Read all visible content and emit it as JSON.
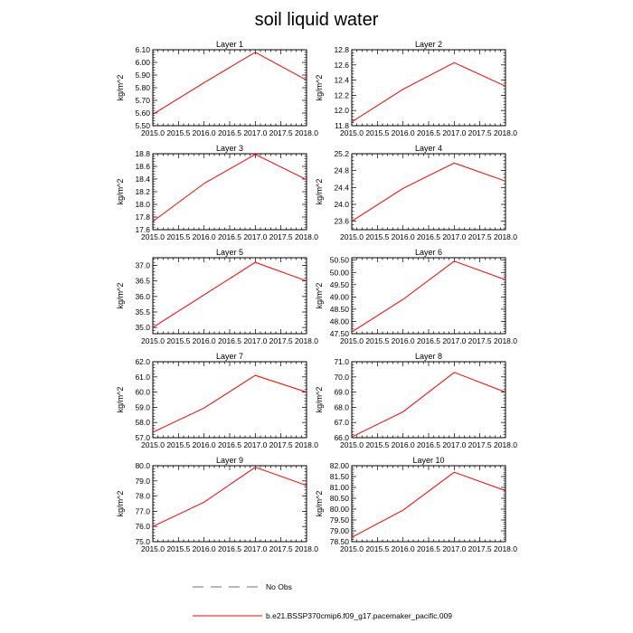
{
  "title": "soil liquid water",
  "colors": {
    "data_line": "#ff0000",
    "axis": "#000000",
    "legend_obs": "#6a6aa8"
  },
  "legend": {
    "obs_label": "No Obs",
    "model_label": "b.e21.BSSP370cmip6.f09_g17.pacemaker_pacific.009"
  },
  "chart_data": [
    {
      "type": "line",
      "title": "Layer 1",
      "xlabel": "",
      "ylabel": "kg/m^2",
      "x": [
        2015,
        2016,
        2017,
        2018
      ],
      "y": [
        5.59,
        5.84,
        6.08,
        5.86
      ],
      "xlim": [
        2015,
        2018
      ],
      "ylim": [
        5.5,
        6.1
      ],
      "xticks": [
        "2015.0",
        "2015.5",
        "2016.0",
        "2016.5",
        "2017.0",
        "2017.5",
        "2018.0"
      ],
      "yticks": [
        "5.50",
        "5.60",
        "5.70",
        "5.80",
        "5.90",
        "6.00",
        "6.10"
      ]
    },
    {
      "type": "line",
      "title": "Layer 2",
      "xlabel": "",
      "ylabel": "kg/m^2",
      "x": [
        2015,
        2016,
        2017,
        2018
      ],
      "y": [
        11.85,
        12.28,
        12.63,
        12.32
      ],
      "xlim": [
        2015,
        2018
      ],
      "ylim": [
        11.8,
        12.8
      ],
      "xticks": [
        "2015.0",
        "2015.5",
        "2016.0",
        "2016.5",
        "2017.0",
        "2017.5",
        "2018.0"
      ],
      "yticks": [
        "11.8",
        "12.0",
        "12.2",
        "12.4",
        "12.6",
        "12.8"
      ]
    },
    {
      "type": "line",
      "title": "Layer 3",
      "xlabel": "",
      "ylabel": "kg/m^2",
      "x": [
        2015,
        2016,
        2017,
        2018
      ],
      "y": [
        17.73,
        18.33,
        18.79,
        18.39
      ],
      "xlim": [
        2015,
        2018
      ],
      "ylim": [
        17.6,
        18.8
      ],
      "xticks": [
        "2015.0",
        "2015.5",
        "2016.0",
        "2016.5",
        "2017.0",
        "2017.5",
        "2018.0"
      ],
      "yticks": [
        "17.6",
        "17.8",
        "18.0",
        "18.2",
        "18.4",
        "18.6",
        "18.8"
      ]
    },
    {
      "type": "line",
      "title": "Layer 4",
      "xlabel": "",
      "ylabel": "kg/m^2",
      "x": [
        2015,
        2016,
        2017,
        2018
      ],
      "y": [
        23.6,
        24.38,
        24.98,
        24.55
      ],
      "xlim": [
        2015,
        2018
      ],
      "ylim": [
        23.4,
        25.2
      ],
      "xticks": [
        "2015.0",
        "2015.5",
        "2016.0",
        "2016.5",
        "2017.0",
        "2017.5",
        "2018.0"
      ],
      "yticks": [
        "23.6",
        "24.0",
        "24.4",
        "24.8",
        "25.2"
      ]
    },
    {
      "type": "line",
      "title": "Layer 5",
      "xlabel": "",
      "ylabel": "kg/m^2",
      "x": [
        2015,
        2016,
        2017,
        2018
      ],
      "y": [
        35.0,
        36.05,
        37.1,
        36.5
      ],
      "xlim": [
        2015,
        2018
      ],
      "ylim": [
        34.8,
        37.25
      ],
      "xticks": [
        "2015.0",
        "2015.5",
        "2016.0",
        "2016.5",
        "2017.0",
        "2017.5",
        "2018.0"
      ],
      "yticks": [
        "35.0",
        "35.5",
        "36.0",
        "36.5",
        "37.0"
      ]
    },
    {
      "type": "line",
      "title": "Layer 6",
      "xlabel": "",
      "ylabel": "kg/m^2",
      "x": [
        2015,
        2016,
        2017,
        2018
      ],
      "y": [
        47.57,
        48.9,
        50.46,
        49.7
      ],
      "xlim": [
        2015,
        2018
      ],
      "ylim": [
        47.5,
        50.6
      ],
      "xticks": [
        "2015.0",
        "2015.5",
        "2016.0",
        "2016.5",
        "2017.0",
        "2017.5",
        "2018.0"
      ],
      "yticks": [
        "47.50",
        "48.00",
        "48.50",
        "49.00",
        "49.50",
        "50.00",
        "50.50"
      ]
    },
    {
      "type": "line",
      "title": "Layer 7",
      "xlabel": "",
      "ylabel": "kg/m^2",
      "x": [
        2015,
        2016,
        2017,
        2018
      ],
      "y": [
        57.35,
        58.95,
        61.1,
        60.0
      ],
      "xlim": [
        2015,
        2018
      ],
      "ylim": [
        57.0,
        62.0
      ],
      "xticks": [
        "2015.0",
        "2015.5",
        "2016.0",
        "2016.5",
        "2017.0",
        "2017.5",
        "2018.0"
      ],
      "yticks": [
        "57.0",
        "58.0",
        "59.0",
        "60.0",
        "61.0",
        "62.0"
      ]
    },
    {
      "type": "line",
      "title": "Layer 8",
      "xlabel": "",
      "ylabel": "kg/m^2",
      "x": [
        2015,
        2016,
        2017,
        2018
      ],
      "y": [
        66.05,
        67.7,
        70.3,
        69.0
      ],
      "xlim": [
        2015,
        2018
      ],
      "ylim": [
        66.0,
        71.0
      ],
      "xticks": [
        "2015.0",
        "2015.5",
        "2016.0",
        "2016.5",
        "2017.0",
        "2017.5",
        "2018.0"
      ],
      "yticks": [
        "66.0",
        "67.0",
        "68.0",
        "69.0",
        "70.0",
        "71.0"
      ]
    },
    {
      "type": "line",
      "title": "Layer 9",
      "xlabel": "",
      "ylabel": "kg/m^2",
      "x": [
        2015,
        2016,
        2017,
        2018
      ],
      "y": [
        76.0,
        77.6,
        79.9,
        78.7
      ],
      "xlim": [
        2015,
        2018
      ],
      "ylim": [
        75.0,
        80.0
      ],
      "xticks": [
        "2015.0",
        "2015.5",
        "2016.0",
        "2016.5",
        "2017.0",
        "2017.5",
        "2018.0"
      ],
      "yticks": [
        "75.0",
        "76.0",
        "77.0",
        "78.0",
        "79.0",
        "80.0"
      ]
    },
    {
      "type": "line",
      "title": "Layer 10",
      "xlabel": "",
      "ylabel": "kg/m^2",
      "x": [
        2015,
        2016,
        2017,
        2018
      ],
      "y": [
        78.7,
        79.95,
        81.7,
        80.85
      ],
      "xlim": [
        2015,
        2018
      ],
      "ylim": [
        78.5,
        82.0
      ],
      "xticks": [
        "2015.0",
        "2015.5",
        "2016.0",
        "2016.5",
        "2017.0",
        "2017.5",
        "2018.0"
      ],
      "yticks": [
        "78.50",
        "79.00",
        "79.50",
        "80.00",
        "80.50",
        "81.00",
        "81.50",
        "82.00"
      ]
    }
  ]
}
